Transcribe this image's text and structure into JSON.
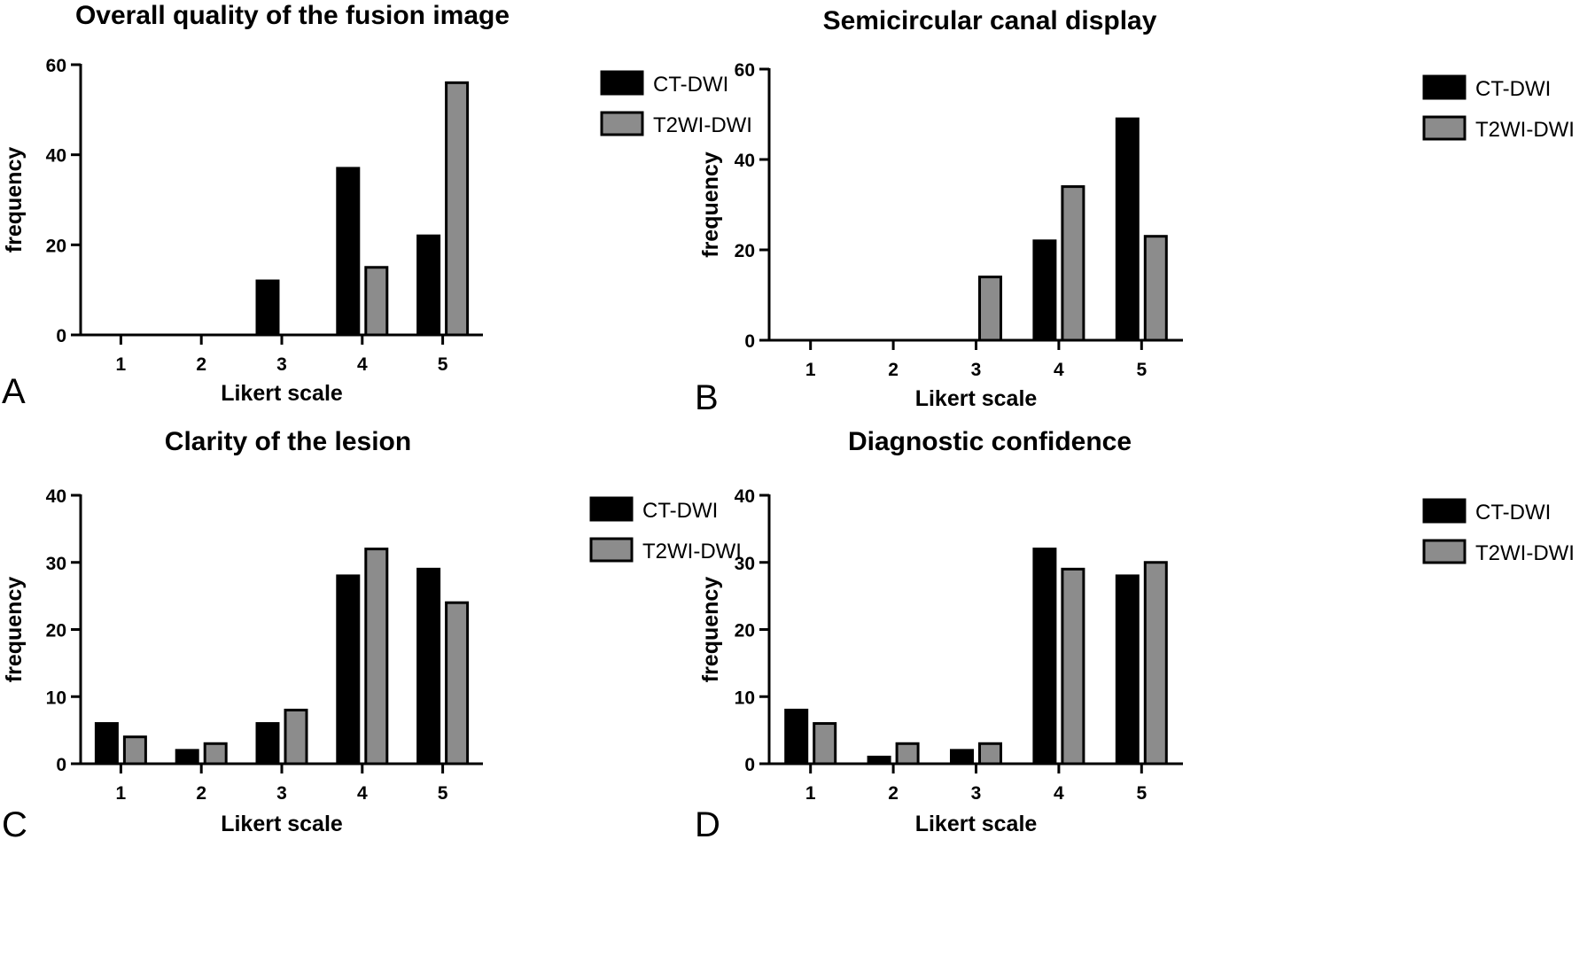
{
  "chart_data": [
    {
      "panel_label": "A",
      "type": "bar",
      "title": "Overall quality of the fusion image",
      "xlabel": "Likert scale",
      "ylabel": "frequency",
      "categories": [
        "1",
        "2",
        "3",
        "4",
        "5"
      ],
      "ylim": [
        0,
        60
      ],
      "yticks": [
        0,
        20,
        40,
        60
      ],
      "legend_position": "right",
      "grid": false,
      "series": [
        {
          "name": "CT-DWI",
          "color": "#000000",
          "values": [
            0,
            0,
            12,
            37,
            22
          ]
        },
        {
          "name": "T2WI-DWI",
          "color": "#8c8c8c",
          "values": [
            0,
            0,
            0,
            15,
            56
          ]
        }
      ]
    },
    {
      "panel_label": "B",
      "type": "bar",
      "title": "Semicircular canal display",
      "xlabel": "Likert scale",
      "ylabel": "frequency",
      "categories": [
        "1",
        "2",
        "3",
        "4",
        "5"
      ],
      "ylim": [
        0,
        60
      ],
      "yticks": [
        0,
        20,
        40,
        60
      ],
      "legend_position": "right",
      "grid": false,
      "series": [
        {
          "name": "CT-DWI",
          "color": "#000000",
          "values": [
            0,
            0,
            0,
            22,
            49
          ]
        },
        {
          "name": "T2WI-DWI",
          "color": "#8c8c8c",
          "values": [
            0,
            0,
            14,
            34,
            23
          ]
        }
      ]
    },
    {
      "panel_label": "C",
      "type": "bar",
      "title": "Clarity of the lesion",
      "xlabel": "Likert scale",
      "ylabel": "frequency",
      "categories": [
        "1",
        "2",
        "3",
        "4",
        "5"
      ],
      "ylim": [
        0,
        40
      ],
      "yticks": [
        0,
        10,
        20,
        30,
        40
      ],
      "legend_position": "right",
      "grid": false,
      "series": [
        {
          "name": "CT-DWI",
          "color": "#000000",
          "values": [
            6,
            2,
            6,
            28,
            29
          ]
        },
        {
          "name": "T2WI-DWI",
          "color": "#8c8c8c",
          "values": [
            4,
            3,
            8,
            32,
            24
          ]
        }
      ]
    },
    {
      "panel_label": "D",
      "type": "bar",
      "title": "Diagnostic confidence",
      "xlabel": "Likert scale",
      "ylabel": "frequency",
      "categories": [
        "1",
        "2",
        "3",
        "4",
        "5"
      ],
      "ylim": [
        0,
        40
      ],
      "yticks": [
        0,
        10,
        20,
        30,
        40
      ],
      "legend_position": "right",
      "grid": false,
      "series": [
        {
          "name": "CT-DWI",
          "color": "#000000",
          "values": [
            8,
            1,
            2,
            32,
            28
          ]
        },
        {
          "name": "T2WI-DWI",
          "color": "#8c8c8c",
          "values": [
            6,
            3,
            3,
            29,
            30
          ]
        }
      ]
    }
  ]
}
